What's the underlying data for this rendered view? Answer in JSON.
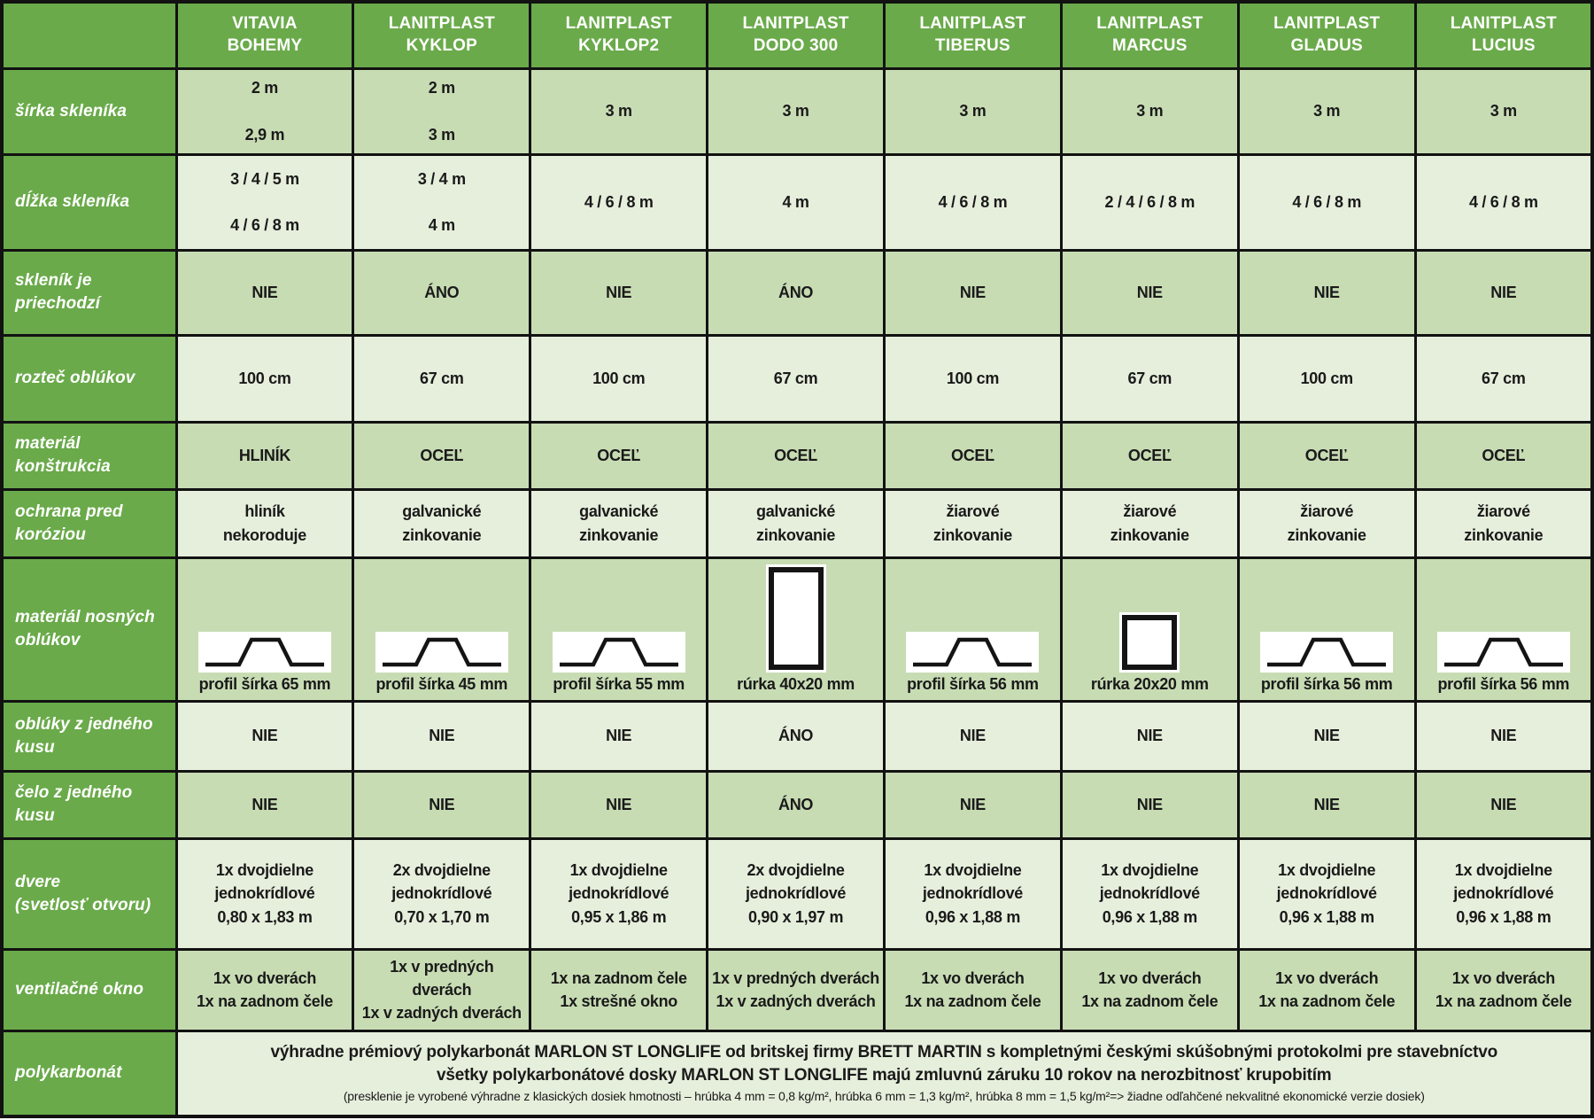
{
  "colors": {
    "header_green": "#6aaa4a",
    "cell_medium": "#c8dcb4",
    "cell_light": "#e6efdc",
    "border_black": "#121212",
    "text_dark": "#1a1a1a",
    "text_white": "#ffffff"
  },
  "table": {
    "products": [
      "VITAVIA\nBOHEMY",
      "LANITPLAST\nKYKLOP",
      "LANITPLAST\nKYKLOP2",
      "LANITPLAST\nDODO 300",
      "LANITPLAST\nTIBERUS",
      "LANITPLAST\nMARCUS",
      "LANITPLAST\nGLADUS",
      "LANITPLAST\nLUCIUS"
    ],
    "rows": [
      {
        "type": "text",
        "label": "šírka skleníka",
        "cells": [
          "2 m\n\n2,9 m",
          "2 m\n\n3 m",
          "3 m",
          "3 m",
          "3 m",
          "3 m",
          "3 m",
          "3 m"
        ]
      },
      {
        "type": "text",
        "label": "dĺžka skleníka",
        "cells": [
          "3 / 4 / 5 m\n\n4 / 6 / 8 m",
          "3 / 4 m\n\n4 m",
          "4 / 6 / 8 m",
          "4 m",
          "4 / 6 / 8 m",
          "2 / 4 / 6 / 8 m",
          "4 / 6 / 8 m",
          "4 / 6 / 8 m"
        ]
      },
      {
        "type": "text",
        "label": "skleník je\npriechodzí",
        "cells": [
          "NIE",
          "ÁNO",
          "NIE",
          "ÁNO",
          "NIE",
          "NIE",
          "NIE",
          "NIE"
        ]
      },
      {
        "type": "text",
        "label": "rozteč oblúkov",
        "cells": [
          "100 cm",
          "67 cm",
          "100 cm",
          "67 cm",
          "100 cm",
          "67 cm",
          "100 cm",
          "67 cm"
        ]
      },
      {
        "type": "text",
        "label": "materiál\nkonštrukcia",
        "cells": [
          "HLINÍK",
          "OCEĽ",
          "OCEĽ",
          "OCEĽ",
          "OCEĽ",
          "OCEĽ",
          "OCEĽ",
          "OCEĽ"
        ]
      },
      {
        "type": "text",
        "label": "ochrana pred\nkoróziou",
        "cells": [
          "hliník\nnekoroduje",
          "galvanické\nzinkovanie",
          "galvanické\nzinkovanie",
          "galvanické\nzinkovanie",
          "žiarové\nzinkovanie",
          "žiarové\nzinkovanie",
          "žiarové\nzinkovanie",
          "žiarové\nzinkovanie"
        ]
      },
      {
        "type": "icons",
        "label": "materiál nosných\noblúkov",
        "cells": [
          {
            "icon": "profile-omega",
            "caption": "profil šírka 65 mm"
          },
          {
            "icon": "profile-omega",
            "caption": "profil šírka 45 mm"
          },
          {
            "icon": "profile-omega",
            "caption": "profil šírka 55 mm"
          },
          {
            "icon": "tube-vertical",
            "caption": "rúrka 40x20 mm"
          },
          {
            "icon": "profile-omega",
            "caption": "profil šírka 56 mm"
          },
          {
            "icon": "tube-square",
            "caption": "rúrka 20x20 mm"
          },
          {
            "icon": "profile-omega",
            "caption": "profil šírka 56 mm"
          },
          {
            "icon": "profile-omega",
            "caption": "profil šírka 56 mm"
          }
        ]
      },
      {
        "type": "text",
        "label": "oblúky z jedného\nkusu",
        "cells": [
          "NIE",
          "NIE",
          "NIE",
          "ÁNO",
          "NIE",
          "NIE",
          "NIE",
          "NIE"
        ]
      },
      {
        "type": "text",
        "label": "čelo z jedného kusu",
        "cells": [
          "NIE",
          "NIE",
          "NIE",
          "ÁNO",
          "NIE",
          "NIE",
          "NIE",
          "NIE"
        ]
      },
      {
        "type": "text",
        "label": "dvere\n(svetlosť otvoru)",
        "cells": [
          "1x dvojdielne\njednokrídlové\n0,80 x 1,83 m",
          "2x dvojdielne\njednokrídlové\n0,70 x 1,70 m",
          "1x dvojdielne\njednokrídlové\n0,95 x 1,86 m",
          "2x dvojdielne\njednokrídlové\n0,90 x 1,97 m",
          "1x dvojdielne\njednokrídlové\n0,96 x 1,88 m",
          "1x dvojdielne\njednokrídlové\n0,96 x 1,88 m",
          "1x dvojdielne\njednokrídlové\n0,96 x 1,88 m",
          "1x dvojdielne\njednokrídlové\n0,96 x 1,88 m"
        ]
      },
      {
        "type": "text",
        "label": "ventilačné okno",
        "cells": [
          "1x vo dverách\n1x na zadnom čele",
          "1x v predných\ndverách\n1x v zadných dverách",
          "1x na zadnom čele\n1x strešné okno",
          "1x v predných dverách\n1x v zadných dverách",
          "1x vo dverách\n1x na zadnom čele",
          "1x vo dverách\n1x na zadnom čele",
          "1x vo dverách\n1x na zadnom čele",
          "1x vo dverách\n1x na zadnom čele"
        ]
      },
      {
        "type": "span",
        "label": "polykarbonát",
        "lines": [
          "výhradne prémiový polykarbonát MARLON ST LONGLIFE od britskej firmy BRETT MARTIN s kompletnými českými skúšobnými protokolmi pre stavebníctvo",
          "všetky polykarbonátové dosky MARLON ST LONGLIFE majú zmluvnú záruku 10 rokov na nerozbitnosť krupobitím",
          "(presklenie je vyrobené výhradne z klasických dosiek hmotnosti – hrúbka 4 mm = 0,8 kg/m², hrúbka 6 mm = 1,3 kg/m², hrúbka 8 mm = 1,5 kg/m²=> žiadne odľahčené nekvalitné ekonomické verzie dosiek)"
        ]
      }
    ]
  }
}
